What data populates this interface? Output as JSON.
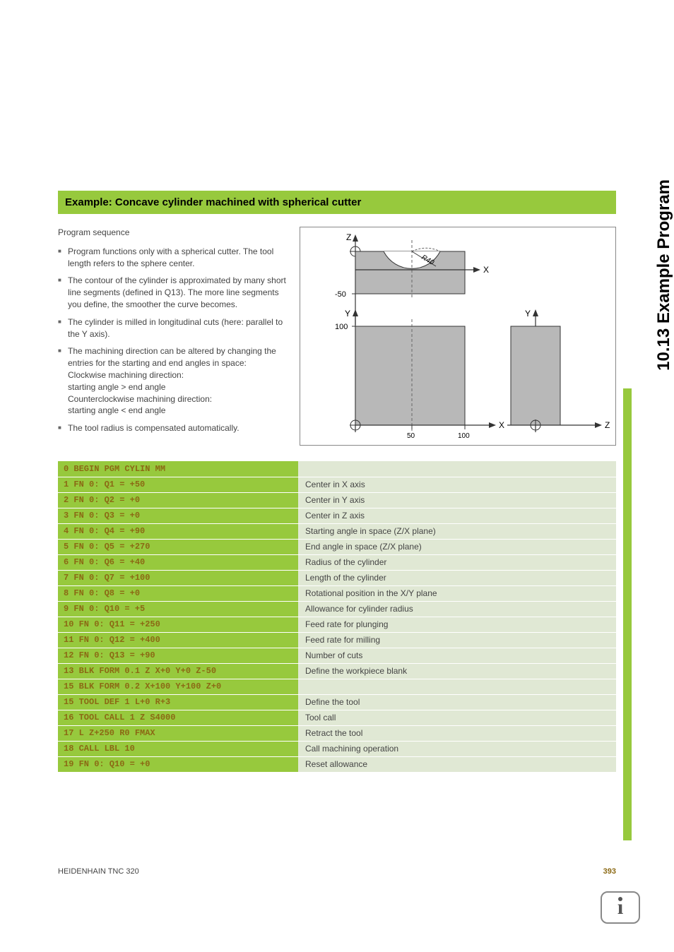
{
  "side_tab": "10.13 Example Program",
  "title": "Example: Concave cylinder machined with spherical cutter",
  "sequence_title": "Program sequence",
  "bullets": [
    "Program functions only with a spherical cutter. The tool length refers to the sphere center.",
    "The contour of the cylinder is approximated by many short line segments (defined in Q13). The more line segments you define, the smoother the curve becomes.",
    "The cylinder is milled in longitudinal cuts (here: parallel to the Y axis).",
    "The machining direction can be altered by changing the entries for the starting and end angles in space:\nClockwise machining direction:\nstarting angle > end angle\nCounterclockwise machining direction:\nstarting angle < end angle",
    "The tool radius is compensated automatically."
  ],
  "diagram": {
    "axes": {
      "z": "Z",
      "x": "X",
      "y": "Y"
    },
    "labels": {
      "r40": "R40",
      "neg50": "-50",
      "p100": "100",
      "tick50": "50",
      "tick100": "100"
    },
    "colors": {
      "shape": "#b8b8b8",
      "line": "#333333",
      "dash": "#666666"
    }
  },
  "code_rows": [
    {
      "code": "0 BEGIN PGM CYLIN MM",
      "desc": ""
    },
    {
      "code": "1 FN 0: Q1 = +50",
      "desc": "Center in X axis"
    },
    {
      "code": "2 FN 0: Q2 = +0",
      "desc": "Center in Y axis"
    },
    {
      "code": "3 FN 0: Q3 = +0",
      "desc": "Center in Z axis"
    },
    {
      "code": "4 FN 0: Q4 = +90",
      "desc": "Starting angle in space (Z/X plane)"
    },
    {
      "code": "5 FN 0: Q5 = +270",
      "desc": "End angle in space (Z/X plane)"
    },
    {
      "code": "6 FN 0: Q6 = +40",
      "desc": "Radius of the cylinder"
    },
    {
      "code": "7 FN 0: Q7 = +100",
      "desc": "Length of the cylinder"
    },
    {
      "code": "8 FN 0: Q8 = +0",
      "desc": "Rotational position in the X/Y plane"
    },
    {
      "code": "9 FN 0: Q10 = +5",
      "desc": "Allowance for cylinder radius"
    },
    {
      "code": "10 FN 0: Q11 = +250",
      "desc": "Feed rate for plunging"
    },
    {
      "code": "11 FN 0: Q12 = +400",
      "desc": "Feed rate for milling"
    },
    {
      "code": "12 FN 0: Q13 = +90",
      "desc": "Number of cuts"
    },
    {
      "code": "13 BLK FORM 0.1 Z X+0 Y+0 Z-50",
      "desc": "Define the workpiece blank"
    },
    {
      "code": "15 BLK FORM 0.2 X+100 Y+100 Z+0",
      "desc": ""
    },
    {
      "code": "15 TOOL DEF 1 L+0 R+3",
      "desc": "Define the tool"
    },
    {
      "code": "16 TOOL CALL 1 Z S4000",
      "desc": "Tool call"
    },
    {
      "code": "17 L Z+250 R0 FMAX",
      "desc": "Retract the tool"
    },
    {
      "code": "18 CALL LBL 10",
      "desc": "Call machining operation"
    },
    {
      "code": "19 FN 0: Q10 = +0",
      "desc": "Reset allowance"
    }
  ],
  "footer": {
    "left": "HEIDENHAIN TNC 320",
    "page": "393"
  }
}
